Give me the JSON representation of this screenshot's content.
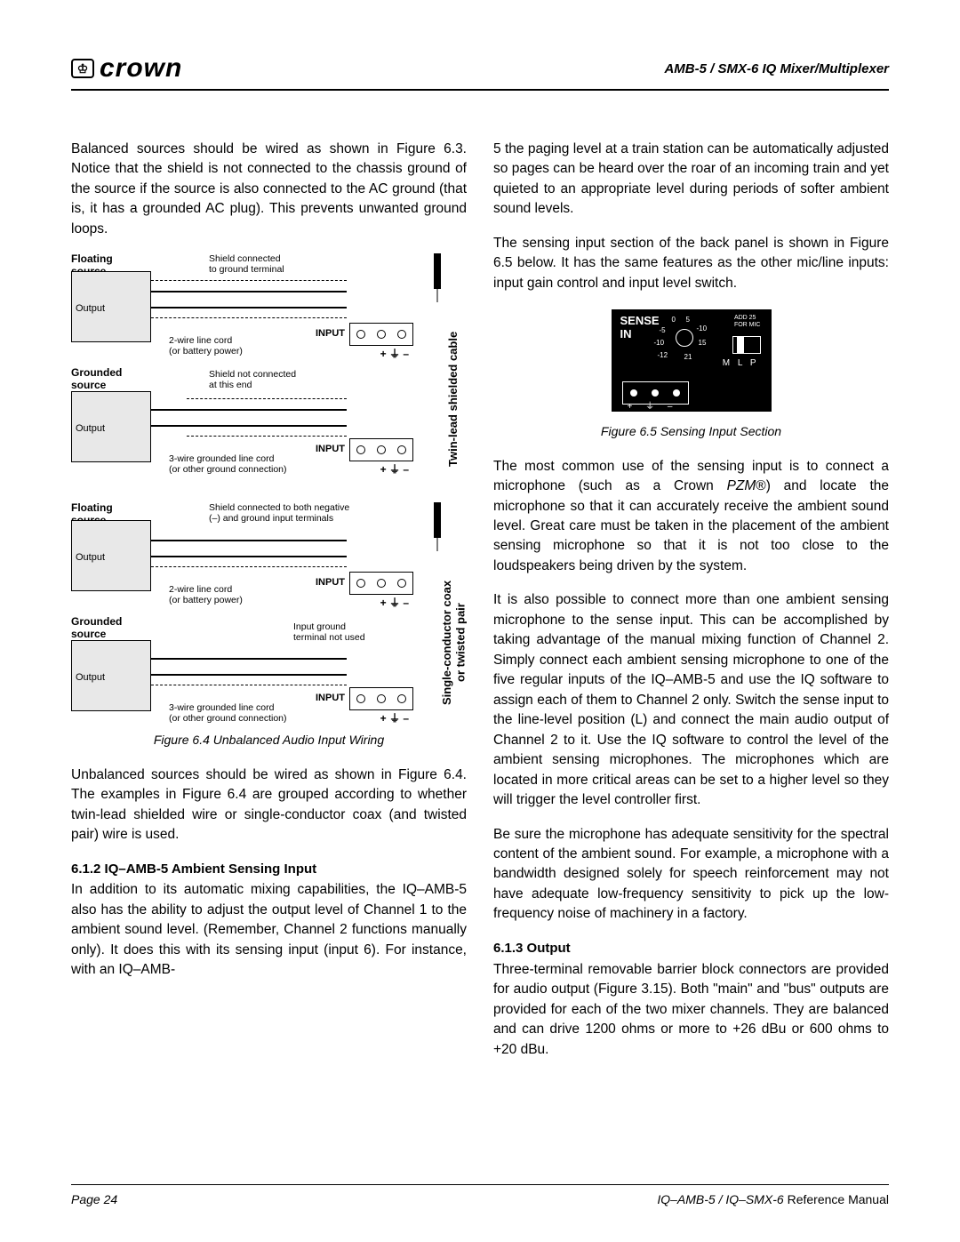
{
  "header": {
    "logo_text": "crown",
    "logo_icon": "♔",
    "right_text": "AMB-5 / SMX-6  IQ Mixer/Multiplexer"
  },
  "left_column": {
    "para1": "Balanced sources should be wired as shown in Figure 6.3. Notice that the shield is not connected to the chassis ground of the source if the source is also connected to the AC ground (that is, it has a grounded AC plug). This prevents unwanted ground loops.",
    "diagram1": {
      "floating_source": "Floating\nsource",
      "grounded_source": "Grounded\nsource",
      "shield_connected": "Shield connected\nto ground terminal",
      "shield_not_connected": "Shield not connected\nat this end",
      "two_wire": "2-wire line cord\n(or battery power)",
      "three_wire": "3-wire grounded line cord\n(or other ground connection)",
      "output": "Output",
      "input": "INPUT",
      "vertical_label": "Twin-lead shielded cable"
    },
    "diagram2": {
      "shield_both": "Shield connected to both negative\n(–) and ground input terminals",
      "input_ground_not_used": "Input ground\nterminal not used",
      "vertical_label": "Single-conductor coax\nor twisted pair"
    },
    "figure_caption": "Figure 6.4 Unbalanced Audio Input Wiring",
    "para2": "Unbalanced sources should be wired as shown in Figure 6.4. The examples in Figure 6.4 are grouped according to whether twin-lead shielded wire or single-conductor coax (and twisted pair) wire is used.",
    "heading1": "6.1.2 IQ–AMB-5 Ambient Sensing Input",
    "para3": "In addition to its automatic mixing capabilities, the IQ–AMB-5 also has the ability to adjust the output level of Channel 1 to the ambient sound level. (Remember, Channel 2 functions manually only). It does this with its sensing input (input 6). For instance, with an IQ–AMB-"
  },
  "right_column": {
    "para1": "5 the paging level at a train station can be automatically adjusted so pages can be heard over the roar of an incoming train and yet quieted to an appropriate level during periods of softer ambient sound levels.",
    "para2": "The sensing input section of the back panel is shown in Figure 6.5 below. It has the same features as the other mic/line inputs: input gain control and input level switch.",
    "sense_panel": {
      "sense_in": "SENSE\nIN",
      "add25": "ADD 25\nFOR MIC",
      "scale": [
        "0",
        "5",
        "-5",
        "-10",
        "-10",
        "-12",
        "15",
        "21"
      ],
      "mlp": "M L P",
      "terminals": "+  ⏚  –"
    },
    "figure_caption": "Figure 6.5 Sensing Input Section",
    "para3_pre": "The most common use of the sensing input is to connect a microphone (such as a Crown ",
    "para3_pzm": "PZM",
    "para3_post": "®) and locate the microphone so that it can accurately receive the ambient sound level. Great care must be taken in the placement of the ambient sensing microphone so that it is not too close to the loudspeakers being driven by the system.",
    "para4": "It is also possible to connect more than one ambient sensing microphone to the sense input. This can be accomplished by taking advantage of the manual mixing function of Channel 2. Simply connect each ambient sensing microphone to one of the five regular inputs of the IQ–AMB-5 and use the IQ software to assign each of them to Channel 2 only. Switch the sense input to the line-level position (L) and connect the main audio output of Channel 2 to it. Use the IQ software to control the level of the ambient sensing microphones. The microphones which are located in more critical areas can be set to a higher level so they will trigger the level controller first.",
    "para5": "Be sure the microphone has adequate sensitivity for the spectral content of the ambient sound. For example, a microphone with a bandwidth designed solely for speech reinforcement may not have adequate low-frequency sensitivity to pick up the low-frequency noise of machinery in a factory.",
    "heading2": "6.1.3 Output",
    "para6": "Three-terminal removable barrier block connectors are provided for audio output (Figure 3.15). Both \"main\" and \"bus\" outputs are provided for each of the two mixer channels. They are balanced and can drive 1200 ohms or more to +26 dBu or 600 ohms to +20 dBu."
  },
  "footer": {
    "left": "Page 24",
    "right_italic": "IQ–AMB-5 / IQ–SMX-6",
    "right_normal": " Reference Manual"
  }
}
